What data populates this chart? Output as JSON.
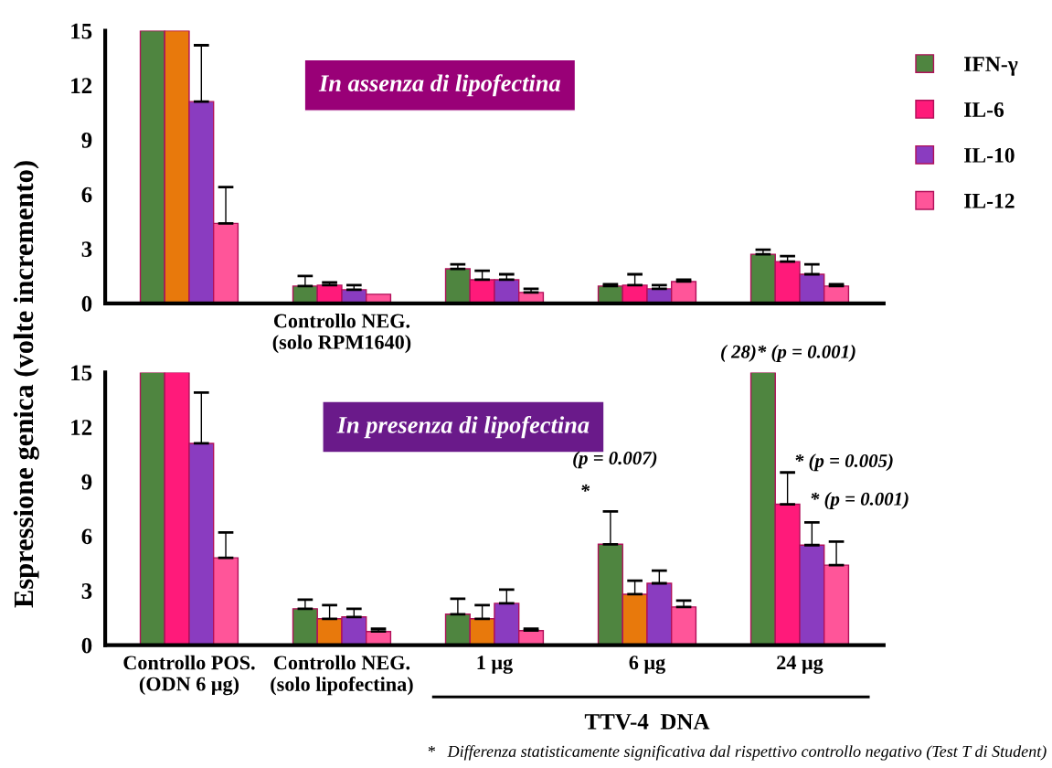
{
  "chart_data": [
    {
      "type": "bar",
      "title": "In assenza di lipofectina",
      "categories": [
        null,
        "Controllo NEG.\n(solo RPM1640)",
        null,
        null,
        null
      ],
      "ylim": [
        0,
        15
      ],
      "yticks": [
        0,
        3,
        6,
        9,
        12,
        15
      ],
      "grid": false,
      "legend": "right",
      "series": [
        {
          "name": "IFN-γ",
          "color": "#4f8540",
          "values": [
            15,
            0.95,
            1.9,
            0.95,
            2.7
          ],
          "errors": [
            null,
            [
              0.95,
              1.5
            ],
            [
              1.9,
              2.15
            ],
            [
              0.95,
              1.05
            ],
            [
              2.7,
              2.95
            ]
          ]
        },
        {
          "name": "IL-6",
          "color": "#ff1a7a",
          "colors": [
            "#e8790c",
            "#ff1a7a",
            "#ff1a7a",
            "#ff1a7a",
            "#ff1a7a"
          ],
          "values": [
            15,
            1.0,
            1.3,
            1.0,
            2.3
          ],
          "errors": [
            null,
            [
              1.0,
              1.15
            ],
            [
              1.3,
              1.8
            ],
            [
              1.0,
              1.6
            ],
            [
              2.3,
              2.6
            ]
          ]
        },
        {
          "name": "IL-10",
          "color": "#8a3cc0",
          "values": [
            11.1,
            0.75,
            1.3,
            0.8,
            1.6
          ],
          "errors": [
            [
              11.1,
              14.2
            ],
            [
              0.75,
              1.0
            ],
            [
              1.3,
              1.6
            ],
            [
              0.8,
              1.0
            ],
            [
              1.6,
              2.15
            ]
          ]
        },
        {
          "name": "IL-12",
          "color": "#ff5599",
          "values": [
            4.4,
            0.5,
            0.6,
            1.2,
            0.95
          ],
          "errors": [
            [
              4.4,
              6.4
            ],
            null,
            [
              0.6,
              0.8
            ],
            [
              1.2,
              1.3
            ],
            [
              0.95,
              1.05
            ]
          ]
        }
      ],
      "ylabel": "Espressione genica (volte incremento)"
    },
    {
      "type": "bar",
      "title": "In presenza di lipofectina",
      "categories": [
        "Controllo POS.\n(ODN 6 μg)",
        "Controllo NEG.\n(solo lipofectina)",
        "1 μg",
        "6 μg",
        "24 μg"
      ],
      "ylim": [
        0,
        15
      ],
      "yticks": [
        0,
        3,
        6,
        9,
        12,
        15
      ],
      "grid": false,
      "series": [
        {
          "color": "#4f8540",
          "values": [
            15,
            2.0,
            1.7,
            5.55,
            15
          ],
          "errors": [
            null,
            [
              2.0,
              2.5
            ],
            [
              1.7,
              2.55
            ],
            [
              5.55,
              7.35
            ],
            null
          ]
        },
        {
          "colors": [
            "#ff1a7a",
            "#e8790c",
            "#e8790c",
            "#e8790c",
            "#ff1a7a"
          ],
          "values": [
            15,
            1.45,
            1.45,
            2.8,
            7.75
          ],
          "errors": [
            null,
            [
              1.45,
              2.2
            ],
            [
              1.45,
              2.2
            ],
            [
              2.8,
              3.55
            ],
            [
              7.75,
              9.5
            ]
          ]
        },
        {
          "color": "#8a3cc0",
          "values": [
            11.1,
            1.55,
            2.3,
            3.4,
            5.5
          ],
          "errors": [
            [
              11.1,
              13.9
            ],
            [
              1.55,
              2.0
            ],
            [
              2.3,
              3.05
            ],
            [
              3.4,
              4.1
            ],
            [
              5.5,
              6.75
            ]
          ]
        },
        {
          "color": "#ff5599",
          "values": [
            4.8,
            0.75,
            0.8,
            2.1,
            4.4
          ],
          "errors": [
            [
              4.8,
              6.2
            ],
            [
              0.75,
              0.9
            ],
            [
              0.8,
              0.9
            ],
            [
              2.1,
              2.45
            ],
            [
              4.4,
              5.7
            ]
          ]
        }
      ],
      "annotations": [
        "( 28)* (p = 0.001)",
        "* (p = 0.005)",
        "* (p = 0.001)",
        "*",
        "(p = 0.007)",
        "TTV-4  DNA",
        "*   Differenza statisticamente significativa dal rispettivo controllo negativo (Test T di Student)"
      ]
    }
  ]
}
